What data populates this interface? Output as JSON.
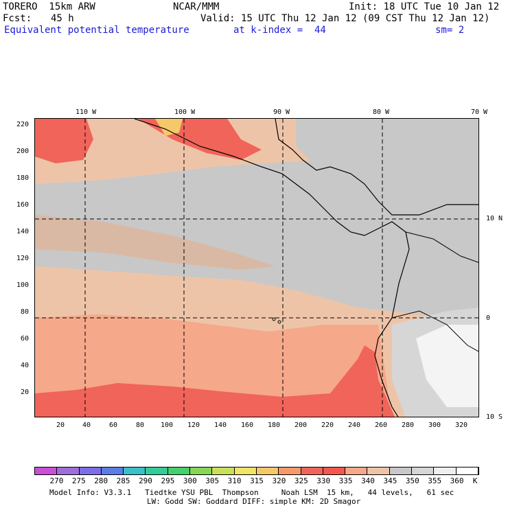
{
  "header": {
    "model": "TORERO  15km ARW",
    "center": "NCAR/MMM",
    "init": "Init: 18 UTC Tue 10 Jan 12",
    "fcst_label": "Fcst:",
    "fcst_value": "45 h",
    "valid": "Valid: 15 UTC Thu 12 Jan 12 (09 CST Thu 12 Jan 12)",
    "field": "Equivalent potential temperature",
    "level": "at k-index =  44",
    "smooth": "sm= 2"
  },
  "top_axis": [
    "110 W",
    "100 W",
    "90 W",
    "80 W",
    "70 W"
  ],
  "right_axis": [
    "10 N",
    "0",
    "10 S"
  ],
  "left_axis": [
    "220",
    "200",
    "180",
    "160",
    "140",
    "120",
    "100",
    "80",
    "60",
    "40",
    "20"
  ],
  "bottom_axis": [
    "20",
    "40",
    "60",
    "80",
    "100",
    "120",
    "140",
    "160",
    "180",
    "200",
    "220",
    "240",
    "260",
    "280",
    "300",
    "320"
  ],
  "colorbar": {
    "labels": [
      "270",
      "275",
      "280",
      "285",
      "290",
      "295",
      "300",
      "305",
      "310",
      "315",
      "320",
      "325",
      "330",
      "335",
      "340",
      "345",
      "350",
      "355",
      "360"
    ],
    "unit": "K",
    "colors": [
      "#c94fd6",
      "#9e6fd8",
      "#7b6ee6",
      "#5a7ee6",
      "#3bbfc9",
      "#33cc99",
      "#44d06a",
      "#88d655",
      "#c8e05a",
      "#f0e46a",
      "#f5c86a",
      "#f59a6a",
      "#f0645a",
      "#f2574d",
      "#f5a88a",
      "#eec4a8",
      "#c8c8c8",
      "#d6d6d6",
      "#eeeeee",
      "#ffffff"
    ]
  },
  "footer": {
    "line1": "Model Info: V3.3.1   Tiedtke YSU PBL  Thompson     Noah LSM  15 km,   44 levels,   61 sec",
    "line2": "LW: Godd SW: Goddard DIFF: simple KM: 2D Smagor"
  }
}
